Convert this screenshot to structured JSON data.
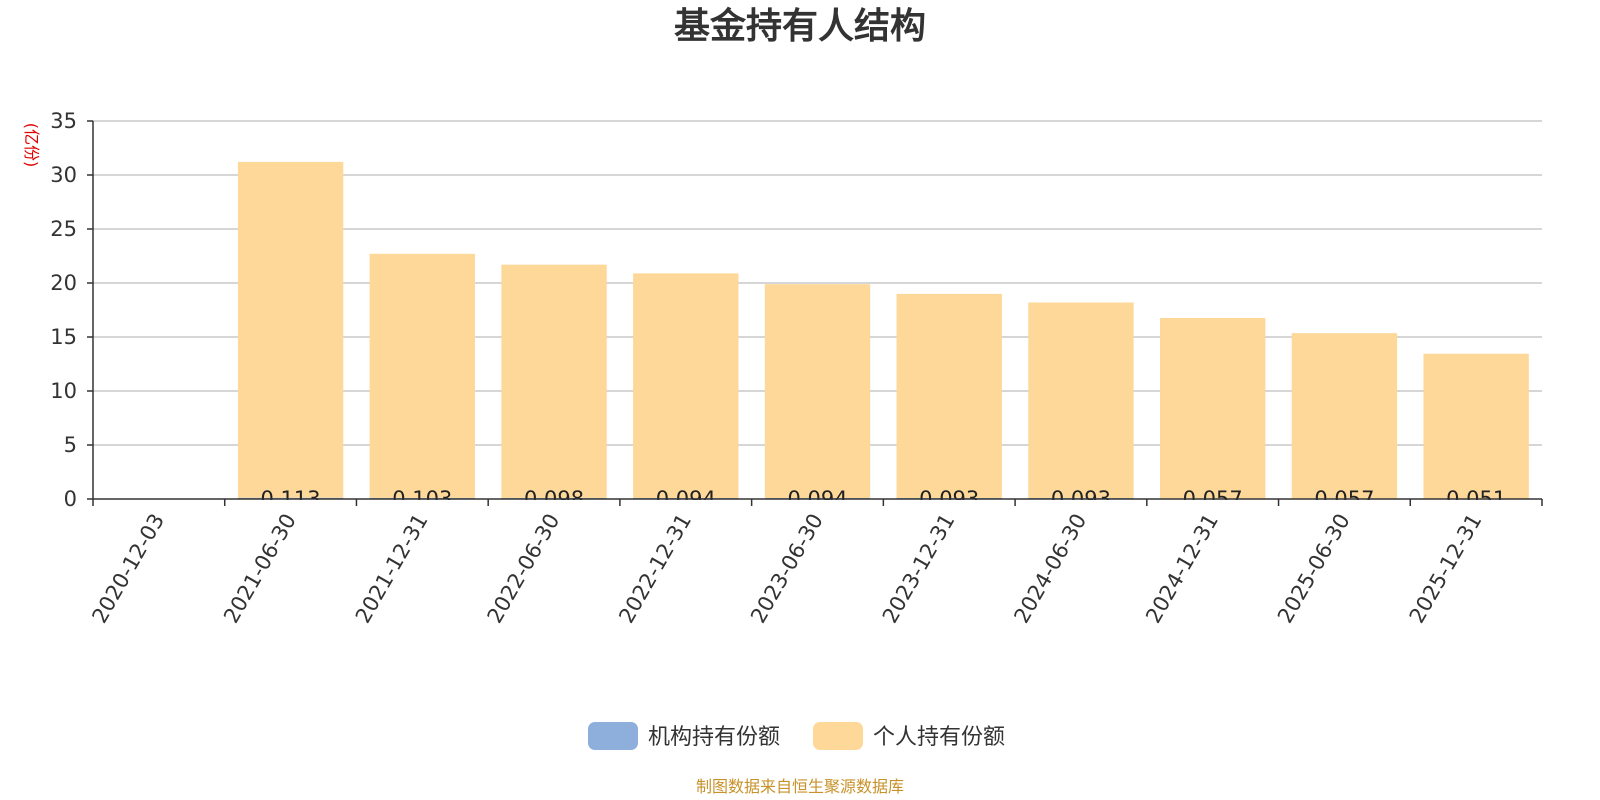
{
  "chart_data": {
    "type": "bar",
    "title": "基金持有人结构",
    "unit_label": "(亿份)",
    "ylim": [
      0,
      35
    ],
    "yticks": [
      0,
      5,
      10,
      15,
      20,
      25,
      30,
      35
    ],
    "categories": [
      "2020-12-03",
      "2021-06-30",
      "2021-12-31",
      "2022-06-30",
      "2022-12-31",
      "2023-06-30",
      "2023-12-31",
      "2024-06-30",
      "2024-12-31",
      "2025-06-30",
      "2025-12-31"
    ],
    "grid": true,
    "legend_position": "bottom-center",
    "series": [
      {
        "name": "机构持有份额",
        "color": "#8eaedb",
        "values": [
          0,
          0.113,
          0.103,
          0.098,
          0.094,
          0.094,
          0.093,
          0.093,
          0.057,
          0.057,
          0.051
        ],
        "labels": [
          "",
          "0.113",
          "0.103",
          "0.098",
          "0.094",
          "0.094",
          "0.093",
          "0.093",
          "0.057",
          "0.057",
          "0.051"
        ]
      },
      {
        "name": "个人持有份额",
        "color": "#fdd899",
        "values": [
          0,
          31.1,
          22.6,
          21.6,
          20.8,
          19.8,
          18.9,
          18.1,
          16.7,
          15.3,
          13.4
        ]
      }
    ],
    "source": "制图数据来自恒生聚源数据库"
  }
}
